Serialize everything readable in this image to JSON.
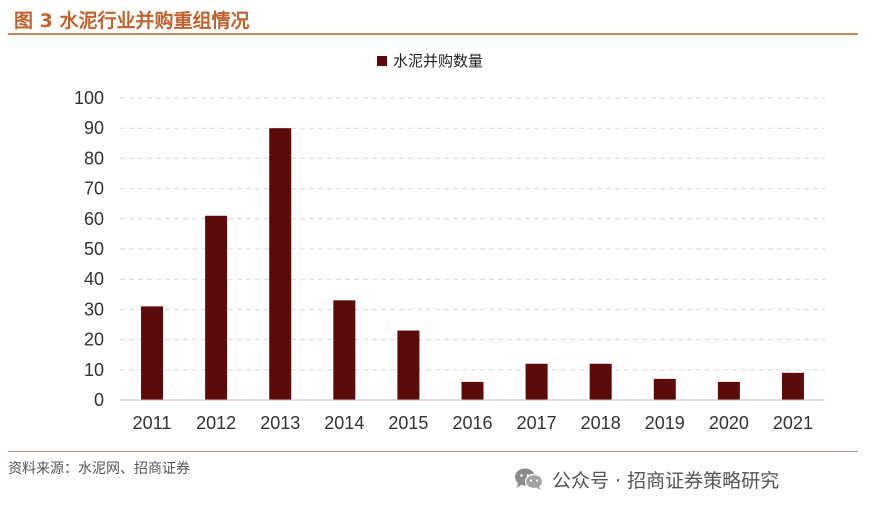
{
  "header": {
    "title": "图 3  水泥行业并购重组情况"
  },
  "footer": {
    "source": "资料来源：水泥网、招商证券",
    "watermark": "公众号 · 招商证券策略研究"
  },
  "colors": {
    "bar": "#5c0a0a",
    "accent": "#c0622e",
    "grid": "#d9d9d9"
  },
  "chart_data": {
    "type": "bar",
    "categories": [
      "2011",
      "2012",
      "2013",
      "2014",
      "2015",
      "2016",
      "2017",
      "2018",
      "2019",
      "2020",
      "2021"
    ],
    "series": [
      {
        "name": "水泥并购数量",
        "values": [
          31,
          61,
          90,
          33,
          23,
          6,
          12,
          12,
          7,
          6,
          9
        ]
      }
    ],
    "ylim": [
      0,
      100
    ],
    "yticks": [
      0,
      10,
      20,
      30,
      40,
      50,
      60,
      70,
      80,
      90,
      100
    ],
    "grid": true,
    "legend": "top-center"
  }
}
